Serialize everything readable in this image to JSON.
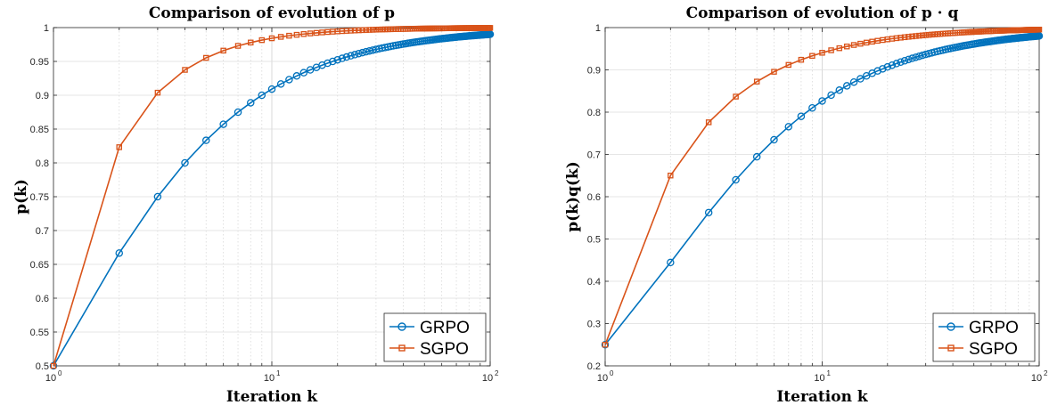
{
  "colors": {
    "grpo": "#0072BD",
    "sgpo": "#D95319",
    "grid": "#dedede",
    "axis": "#262626"
  },
  "chart_data": [
    {
      "type": "line",
      "title": "Comparison of evolution of p",
      "xlabel": "Iteration k",
      "ylabel": "p(k)",
      "xscale": "log",
      "xlim": [
        1,
        100
      ],
      "ylim": [
        0.5,
        1
      ],
      "yticks": [
        "0.5",
        "0.55",
        "0.6",
        "0.65",
        "0.7",
        "0.75",
        "0.8",
        "0.85",
        "0.9",
        "0.95",
        "1"
      ],
      "xticks": [
        {
          "base": "10",
          "exp": "0"
        },
        {
          "base": "10",
          "exp": "1"
        },
        {
          "base": "10",
          "exp": "2"
        }
      ],
      "grid": true,
      "legend_position": "bottom-right",
      "series": [
        {
          "name": "GRPO",
          "marker": "circle",
          "color": "#0072BD",
          "formula": "p(k) = k/(k+1)",
          "k_range": [
            1,
            100
          ]
        },
        {
          "name": "SGPO",
          "marker": "square",
          "color": "#D95319",
          "formula": "p(k) = 1 - 1/(2*k^1.5)",
          "k_range": [
            1,
            100
          ]
        }
      ]
    },
    {
      "type": "line",
      "title": "Comparison of evolution of p · q",
      "xlabel": "Iteration k",
      "ylabel": "p(k)q(k)",
      "xscale": "log",
      "xlim": [
        1,
        100
      ],
      "ylim": [
        0.2,
        1
      ],
      "yticks": [
        "0.2",
        "0.3",
        "0.4",
        "0.5",
        "0.6",
        "0.7",
        "0.8",
        "0.9",
        "1"
      ],
      "xticks": [
        {
          "base": "10",
          "exp": "0"
        },
        {
          "base": "10",
          "exp": "1"
        },
        {
          "base": "10",
          "exp": "2"
        }
      ],
      "grid": true,
      "legend_position": "bottom-right",
      "series": [
        {
          "name": "GRPO",
          "marker": "circle",
          "color": "#0072BD",
          "formula": "p(k)q(k) = (k/(k+1))^2",
          "k_range": [
            1,
            100
          ]
        },
        {
          "name": "SGPO",
          "marker": "square",
          "color": "#D95319",
          "formula": "p(k)q(k) = 1 - 0.75/k^1.1",
          "k_range": [
            1,
            100
          ]
        }
      ]
    }
  ]
}
